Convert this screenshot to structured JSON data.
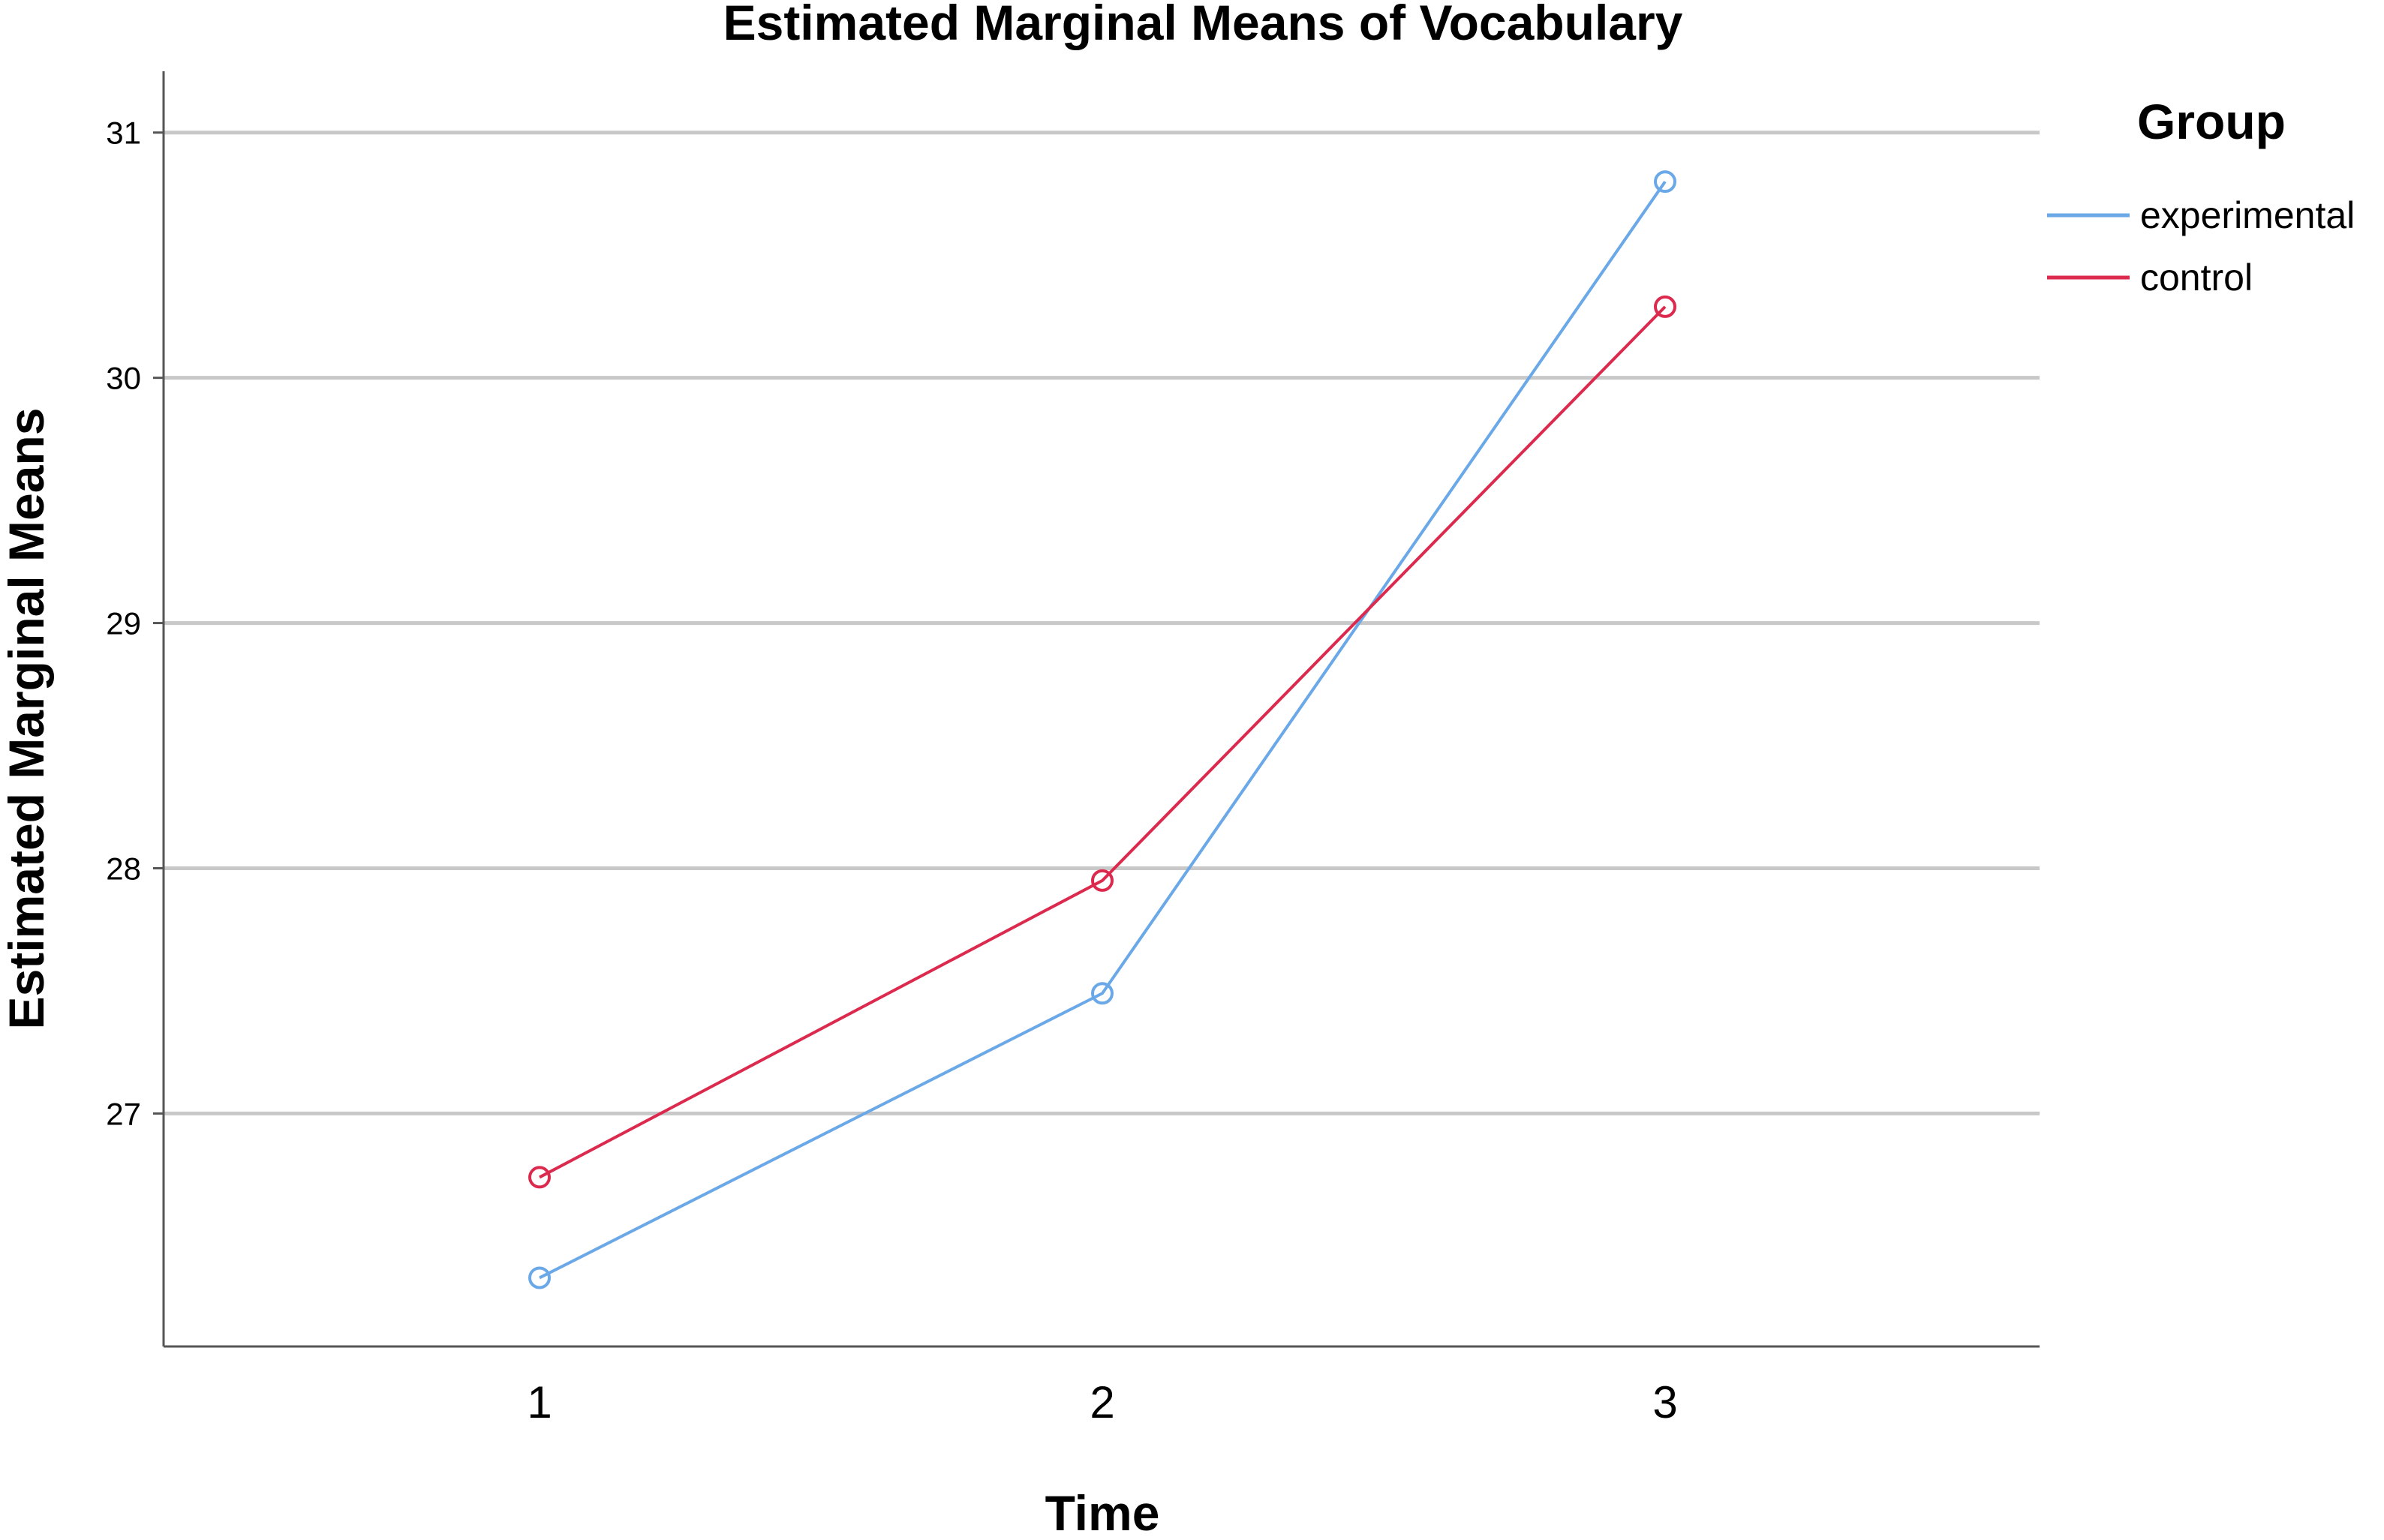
{
  "chart_data": {
    "type": "line",
    "title": "Estimated Marginal Means of Vocabulary",
    "xlabel": "Time",
    "ylabel": "Estimated Marginal Means",
    "categories": [
      "1",
      "2",
      "3"
    ],
    "ylim": [
      26.05,
      31.25
    ],
    "yticks": [
      "27",
      "28",
      "29",
      "30",
      "31"
    ],
    "grid": true,
    "legend": {
      "title": "Group",
      "position": "right"
    },
    "series": [
      {
        "name": "experimental",
        "color": "#6aa8e8",
        "values": [
          26.33,
          27.49,
          30.8
        ]
      },
      {
        "name": "control",
        "color": "#dc2a4e",
        "values": [
          26.74,
          27.95,
          30.29
        ]
      }
    ]
  }
}
